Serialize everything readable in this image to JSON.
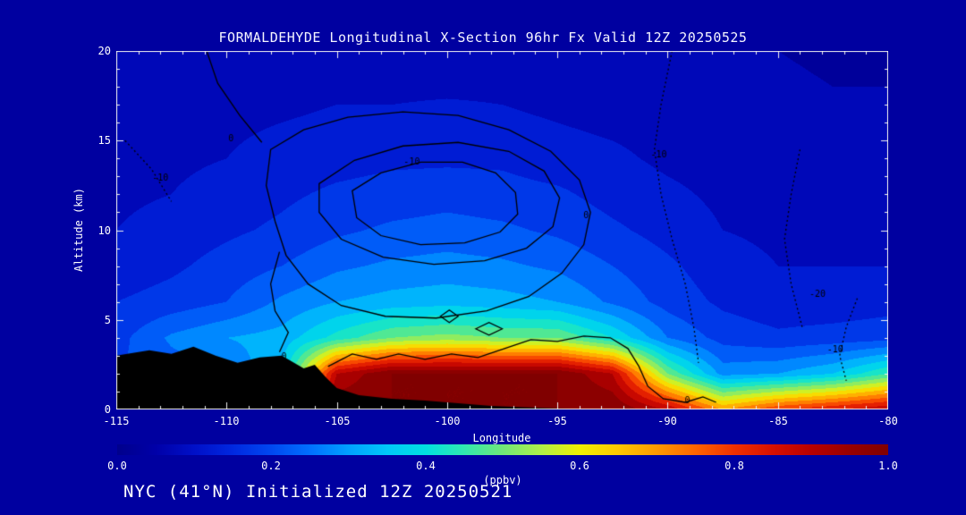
{
  "title": "FORMALDEHYDE Longitudinal X-Section 96hr  Fx Valid 12Z 20250525",
  "footer": "NYC (41°N) Initialized 12Z 20250521",
  "axes": {
    "x": {
      "label": "Longitude",
      "ticks": [
        "-115",
        "-110",
        "-105",
        "-100",
        "-95",
        "-90",
        "-85",
        "-80"
      ]
    },
    "y": {
      "label": "Altitude (km)",
      "ticks": [
        "20",
        "15",
        "10",
        "5",
        "0"
      ]
    }
  },
  "colorbar": {
    "label": "(ppbv)",
    "ticks": [
      "0.0",
      "0.2",
      "0.4",
      "0.6",
      "0.8",
      "1.0"
    ]
  },
  "chart_data": {
    "type": "heatmap",
    "title": "FORMALDEHYDE Longitudinal X-Section 96hr  Fx Valid 12Z 20250525",
    "xlabel": "Longitude",
    "ylabel": "Altitude (km)",
    "units": "ppbv",
    "xlim": [
      -115,
      -80
    ],
    "ylim": [
      0,
      20
    ],
    "clim": [
      0,
      1
    ],
    "level_step": 0.05,
    "x": [
      -115,
      -112.5,
      -110,
      -107.5,
      -105,
      -102.5,
      -100,
      -97.5,
      -95,
      -92.5,
      -90,
      -87.5,
      -85,
      -82.5,
      -80
    ],
    "y": [
      0,
      2,
      4,
      6,
      8,
      10,
      12,
      14,
      16,
      18,
      20
    ],
    "values": [
      [
        0.3,
        0.3,
        0.3,
        0.5,
        1.0,
        1.0,
        1.0,
        1.0,
        1.0,
        1.0,
        0.9,
        0.7,
        0.8,
        0.85,
        0.9
      ],
      [
        0.2,
        0.22,
        0.25,
        0.35,
        0.9,
        1.0,
        1.0,
        1.0,
        1.0,
        0.9,
        0.5,
        0.28,
        0.3,
        0.35,
        0.45
      ],
      [
        0.18,
        0.26,
        0.3,
        0.32,
        0.42,
        0.5,
        0.52,
        0.5,
        0.5,
        0.4,
        0.25,
        0.18,
        0.16,
        0.17,
        0.18
      ],
      [
        0.15,
        0.17,
        0.2,
        0.26,
        0.3,
        0.32,
        0.33,
        0.32,
        0.3,
        0.24,
        0.18,
        0.14,
        0.12,
        0.12,
        0.13
      ],
      [
        0.12,
        0.14,
        0.17,
        0.2,
        0.24,
        0.26,
        0.27,
        0.26,
        0.24,
        0.2,
        0.16,
        0.12,
        0.1,
        0.1,
        0.1
      ],
      [
        0.1,
        0.12,
        0.14,
        0.16,
        0.19,
        0.21,
        0.22,
        0.21,
        0.19,
        0.16,
        0.13,
        0.1,
        0.09,
        0.08,
        0.08
      ],
      [
        0.09,
        0.1,
        0.12,
        0.14,
        0.16,
        0.17,
        0.18,
        0.17,
        0.16,
        0.13,
        0.11,
        0.09,
        0.08,
        0.07,
        0.07
      ],
      [
        0.08,
        0.09,
        0.1,
        0.12,
        0.13,
        0.14,
        0.14,
        0.14,
        0.12,
        0.11,
        0.09,
        0.08,
        0.07,
        0.06,
        0.06
      ],
      [
        0.07,
        0.08,
        0.09,
        0.1,
        0.11,
        0.11,
        0.12,
        0.11,
        0.1,
        0.09,
        0.08,
        0.07,
        0.06,
        0.06,
        0.05
      ],
      [
        0.06,
        0.07,
        0.08,
        0.08,
        0.09,
        0.09,
        0.09,
        0.09,
        0.08,
        0.08,
        0.07,
        0.06,
        0.06,
        0.05,
        0.05
      ],
      [
        0.05,
        0.06,
        0.06,
        0.07,
        0.07,
        0.08,
        0.08,
        0.07,
        0.07,
        0.06,
        0.06,
        0.05,
        0.05,
        0.04,
        0.04
      ]
    ],
    "colormap": [
      [
        0.0,
        "#00008c"
      ],
      [
        0.05,
        "#0000a8"
      ],
      [
        0.1,
        "#0010c8"
      ],
      [
        0.15,
        "#0028e0"
      ],
      [
        0.2,
        "#0048f0"
      ],
      [
        0.25,
        "#0070ff"
      ],
      [
        0.3,
        "#00a0ff"
      ],
      [
        0.35,
        "#00c8f8"
      ],
      [
        0.4,
        "#00e0e0"
      ],
      [
        0.45,
        "#30e8b0"
      ],
      [
        0.5,
        "#70e878"
      ],
      [
        0.55,
        "#b0f048"
      ],
      [
        0.6,
        "#f0f000"
      ],
      [
        0.65,
        "#ffc800"
      ],
      [
        0.7,
        "#ff9800"
      ],
      [
        0.75,
        "#ff6400"
      ],
      [
        0.8,
        "#f03000"
      ],
      [
        0.85,
        "#d81000"
      ],
      [
        0.9,
        "#b80000"
      ],
      [
        0.95,
        "#980000"
      ],
      [
        1.0,
        "#800000"
      ]
    ],
    "terrain_profile": [
      [
        -115,
        3.0
      ],
      [
        -113.5,
        3.3
      ],
      [
        -112.5,
        3.1
      ],
      [
        -111.5,
        3.5
      ],
      [
        -110.5,
        3.0
      ],
      [
        -109.5,
        2.6
      ],
      [
        -108.5,
        2.9
      ],
      [
        -107.5,
        3.0
      ],
      [
        -106.5,
        2.3
      ],
      [
        -106,
        2.5
      ],
      [
        -105.5,
        1.8
      ],
      [
        -105,
        1.2
      ],
      [
        -104,
        0.8
      ],
      [
        -102.5,
        0.6
      ],
      [
        -101,
        0.5
      ],
      [
        -99.5,
        0.35
      ],
      [
        -98,
        0.2
      ],
      [
        -96.5,
        0.12
      ],
      [
        -95,
        0.06
      ],
      [
        -93,
        0.02
      ],
      [
        -80,
        0.0
      ]
    ],
    "contours": [
      {
        "closed": true,
        "dotted": false,
        "points": [
          [
            -108,
            14.5
          ],
          [
            -106.5,
            15.6
          ],
          [
            -104.5,
            16.3
          ],
          [
            -102,
            16.6
          ],
          [
            -99.5,
            16.4
          ],
          [
            -97.2,
            15.6
          ],
          [
            -95.3,
            14.4
          ],
          [
            -94,
            12.8
          ],
          [
            -93.5,
            11
          ],
          [
            -93.8,
            9.2
          ],
          [
            -94.8,
            7.6
          ],
          [
            -96.3,
            6.3
          ],
          [
            -98.2,
            5.5
          ],
          [
            -100.5,
            5.1
          ],
          [
            -102.8,
            5.2
          ],
          [
            -104.8,
            5.8
          ],
          [
            -106.3,
            7
          ],
          [
            -107.3,
            8.6
          ],
          [
            -107.8,
            10.5
          ],
          [
            -108.2,
            12.5
          ]
        ]
      },
      {
        "closed": true,
        "dotted": false,
        "points": [
          [
            -105.8,
            12.6
          ],
          [
            -104.2,
            13.9
          ],
          [
            -102,
            14.7
          ],
          [
            -99.5,
            14.9
          ],
          [
            -97.2,
            14.4
          ],
          [
            -95.6,
            13.3
          ],
          [
            -94.9,
            11.8
          ],
          [
            -95.2,
            10.2
          ],
          [
            -96.4,
            9
          ],
          [
            -98.3,
            8.3
          ],
          [
            -100.6,
            8.1
          ],
          [
            -102.9,
            8.5
          ],
          [
            -104.8,
            9.5
          ],
          [
            -105.8,
            11
          ]
        ]
      },
      {
        "closed": true,
        "dotted": false,
        "points": [
          [
            -104.3,
            12.2
          ],
          [
            -103,
            13.2
          ],
          [
            -101.2,
            13.8
          ],
          [
            -99.3,
            13.8
          ],
          [
            -97.8,
            13.2
          ],
          [
            -96.9,
            12.1
          ],
          [
            -96.8,
            10.9
          ],
          [
            -97.6,
            9.9
          ],
          [
            -99.2,
            9.3
          ],
          [
            -101.2,
            9.2
          ],
          [
            -103,
            9.7
          ],
          [
            -104.1,
            10.7
          ]
        ]
      },
      {
        "closed": false,
        "dotted": false,
        "points": [
          [
            -110.9,
            20
          ],
          [
            -110.4,
            18.2
          ],
          [
            -109.4,
            16.4
          ],
          [
            -108.4,
            14.9
          ]
        ]
      },
      {
        "closed": false,
        "dotted": false,
        "points": [
          [
            -107.6,
            8.8
          ],
          [
            -108,
            7
          ],
          [
            -107.8,
            5.5
          ],
          [
            -107.2,
            4.3
          ],
          [
            -107.6,
            3.2
          ]
        ]
      },
      {
        "closed": false,
        "dotted": false,
        "points": [
          [
            -105.4,
            2.4
          ],
          [
            -104.3,
            3.1
          ],
          [
            -103.2,
            2.8
          ],
          [
            -102.2,
            3.1
          ],
          [
            -101,
            2.8
          ],
          [
            -99.8,
            3.1
          ],
          [
            -98.6,
            2.9
          ],
          [
            -97.4,
            3.4
          ],
          [
            -96.2,
            3.9
          ],
          [
            -95,
            3.8
          ],
          [
            -93.8,
            4.1
          ],
          [
            -92.6,
            4.0
          ],
          [
            -91.8,
            3.4
          ],
          [
            -91.3,
            2.4
          ],
          [
            -90.9,
            1.3
          ],
          [
            -90.2,
            0.6
          ],
          [
            -89.2,
            0.4
          ],
          [
            -88.4,
            0.7
          ],
          [
            -87.8,
            0.4
          ]
        ]
      },
      {
        "closed": true,
        "dotted": false,
        "points": [
          [
            -100.3,
            5.2
          ],
          [
            -99.9,
            5.55
          ],
          [
            -99.5,
            5.2
          ],
          [
            -99.9,
            4.85
          ]
        ]
      },
      {
        "closed": true,
        "dotted": false,
        "points": [
          [
            -98.7,
            4.5
          ],
          [
            -98.1,
            4.85
          ],
          [
            -97.5,
            4.5
          ],
          [
            -98.1,
            4.15
          ]
        ]
      },
      {
        "closed": false,
        "dotted": true,
        "points": [
          [
            -89.8,
            20
          ],
          [
            -90.3,
            17
          ],
          [
            -90.6,
            14.5
          ],
          [
            -90.3,
            12
          ],
          [
            -89.8,
            9.5
          ],
          [
            -89.2,
            7
          ],
          [
            -88.8,
            4.5
          ],
          [
            -88.6,
            2.6
          ]
        ]
      },
      {
        "closed": false,
        "dotted": true,
        "points": [
          [
            -84,
            14.5
          ],
          [
            -84.4,
            12
          ],
          [
            -84.7,
            9.5
          ],
          [
            -84.4,
            7
          ],
          [
            -83.9,
            4.6
          ]
        ]
      },
      {
        "closed": false,
        "dotted": true,
        "points": [
          [
            -81.4,
            6.2
          ],
          [
            -81.9,
            4.6
          ],
          [
            -82.2,
            3
          ],
          [
            -81.9,
            1.6
          ]
        ]
      },
      {
        "closed": false,
        "dotted": true,
        "points": [
          [
            -114.6,
            15
          ],
          [
            -113.4,
            13.4
          ],
          [
            -112.5,
            11.6
          ]
        ]
      }
    ],
    "contour_labels": [
      {
        "text": "0",
        "lon": -109.8,
        "alt": 15.1
      },
      {
        "text": "-10",
        "lon": -101.6,
        "alt": 13.8
      },
      {
        "text": "0",
        "lon": -93.7,
        "alt": 10.8
      },
      {
        "text": "-10",
        "lon": -90.4,
        "alt": 14.2
      },
      {
        "text": "-10",
        "lon": -113,
        "alt": 12.9
      },
      {
        "text": "-20",
        "lon": -83.2,
        "alt": 6.4
      },
      {
        "text": "-10",
        "lon": -82.4,
        "alt": 3.3
      },
      {
        "text": "0",
        "lon": -107.4,
        "alt": 2.9
      },
      {
        "text": "0",
        "lon": -89.1,
        "alt": 0.5
      }
    ]
  }
}
